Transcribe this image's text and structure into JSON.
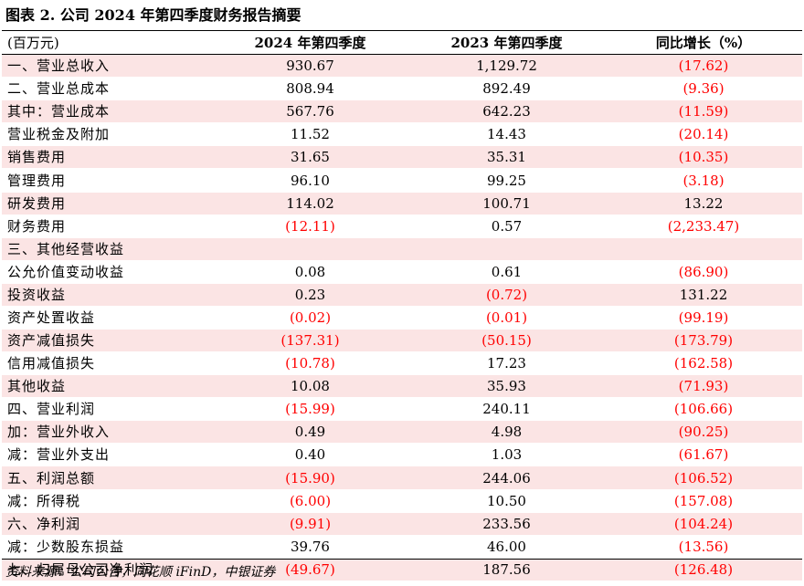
{
  "title": "图表 2. 公司 2024 年第四季度财务报告摘要",
  "table": {
    "headers": [
      "(百万元)",
      "2024 年第四季度",
      "2023 年第四季度",
      "同比增长（%）"
    ],
    "rows": [
      {
        "label": "一、营业总收入",
        "v2024": "930.67",
        "v2023": "1,129.72",
        "yoy": "(17.62)"
      },
      {
        "label": "二、营业总成本",
        "v2024": "808.94",
        "v2023": "892.49",
        "yoy": "(9.36)"
      },
      {
        "label": "其中：营业成本",
        "v2024": "567.76",
        "v2023": "642.23",
        "yoy": "(11.59)"
      },
      {
        "label": "营业税金及附加",
        "v2024": "11.52",
        "v2023": "14.43",
        "yoy": "(20.14)"
      },
      {
        "label": "销售费用",
        "v2024": "31.65",
        "v2023": "35.31",
        "yoy": "(10.35)"
      },
      {
        "label": "管理费用",
        "v2024": "96.10",
        "v2023": "99.25",
        "yoy": "(3.18)"
      },
      {
        "label": "研发费用",
        "v2024": "114.02",
        "v2023": "100.71",
        "yoy": "13.22"
      },
      {
        "label": "财务费用",
        "v2024": "(12.11)",
        "v2023": "0.57",
        "yoy": "(2,233.47)"
      },
      {
        "label": "三、其他经营收益",
        "v2024": "",
        "v2023": "",
        "yoy": ""
      },
      {
        "label": "公允价值变动收益",
        "v2024": "0.08",
        "v2023": "0.61",
        "yoy": "(86.90)"
      },
      {
        "label": "投资收益",
        "v2024": "0.23",
        "v2023": "(0.72)",
        "yoy": "131.22"
      },
      {
        "label": "资产处置收益",
        "v2024": "(0.02)",
        "v2023": "(0.01)",
        "yoy": "(99.19)"
      },
      {
        "label": "资产减值损失",
        "v2024": "(137.31)",
        "v2023": "(50.15)",
        "yoy": "(173.79)"
      },
      {
        "label": "信用减值损失",
        "v2024": "(10.78)",
        "v2023": "17.23",
        "yoy": "(162.58)"
      },
      {
        "label": "其他收益",
        "v2024": "10.08",
        "v2023": "35.93",
        "yoy": "(71.93)"
      },
      {
        "label": "四、营业利润",
        "v2024": "(15.99)",
        "v2023": "240.11",
        "yoy": "(106.66)"
      },
      {
        "label": "加：营业外收入",
        "v2024": "0.49",
        "v2023": "4.98",
        "yoy": "(90.25)"
      },
      {
        "label": "减：营业外支出",
        "v2024": "0.40",
        "v2023": "1.03",
        "yoy": "(61.67)"
      },
      {
        "label": "五、利润总额",
        "v2024": "(15.90)",
        "v2023": "244.06",
        "yoy": "(106.52)"
      },
      {
        "label": "减：所得税",
        "v2024": "(6.00)",
        "v2023": "10.50",
        "yoy": "(157.08)"
      },
      {
        "label": "六、净利润",
        "v2024": "(9.91)",
        "v2023": "233.56",
        "yoy": "(104.24)"
      },
      {
        "label": "减：少数股东损益",
        "v2024": "39.76",
        "v2023": "46.00",
        "yoy": "(13.56)"
      },
      {
        "label": "七、归属母公司净利润",
        "v2024": "(49.67)",
        "v2023": "187.56",
        "yoy": "(126.48)"
      }
    ]
  },
  "source": "资料来源：公司公告，同花顺 iFinD，中银证券",
  "colors": {
    "negative": "#ff0000",
    "row_shade": "#fbe4e4"
  }
}
